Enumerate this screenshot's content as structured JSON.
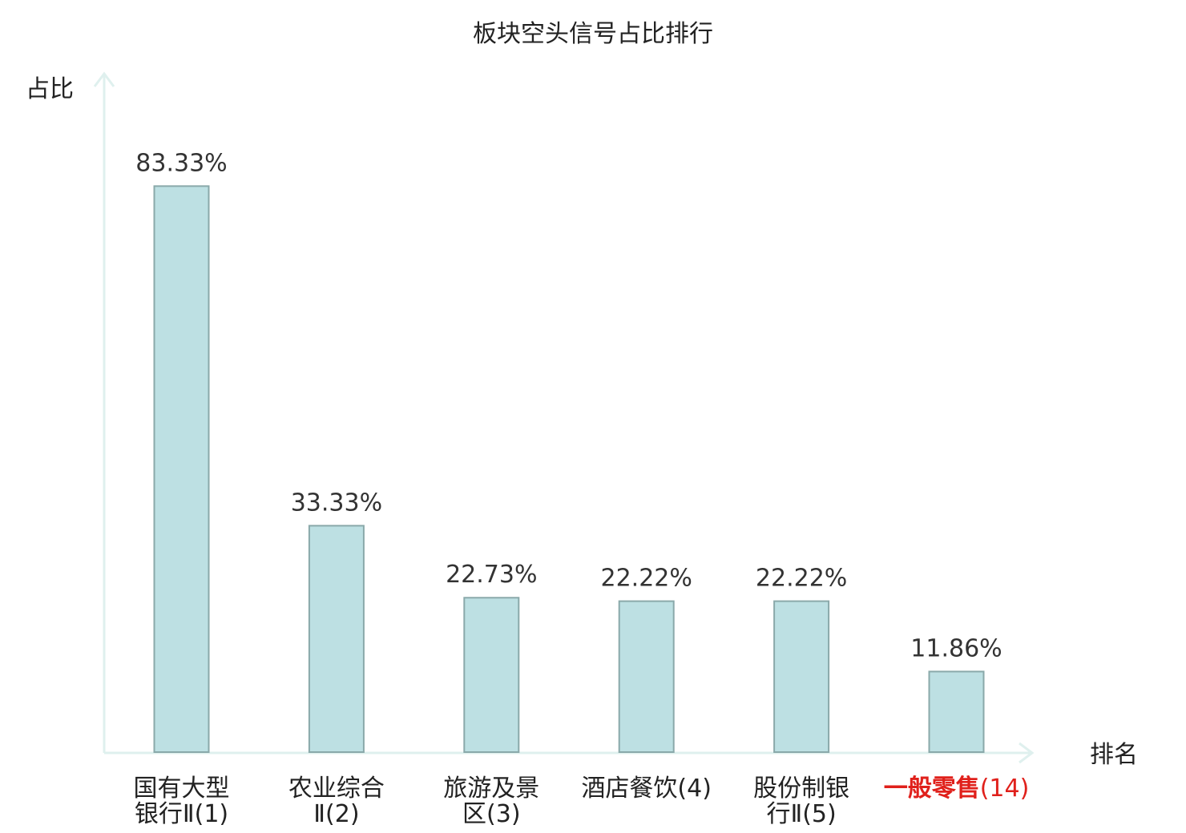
{
  "chart_data": {
    "type": "bar",
    "title": "板块空头信号占比排行",
    "ylabel": "占比",
    "xlabel": "排名",
    "ylim": [
      0,
      100
    ],
    "grid": false,
    "legend": "none",
    "categories": [
      {
        "lines": [
          "国有大型",
          "银行Ⅱ(1)"
        ],
        "highlight": false
      },
      {
        "lines": [
          "农业综合",
          "Ⅱ(2)"
        ],
        "highlight": false
      },
      {
        "lines": [
          "旅游及景",
          "区(3)"
        ],
        "highlight": false
      },
      {
        "lines": [
          "酒店餐饮(4)"
        ],
        "highlight": false
      },
      {
        "lines": [
          "股份制银",
          "行Ⅱ(5)"
        ],
        "highlight": false
      },
      {
        "lines": [
          {
            "main": "一般零售",
            "suffix": "(14)"
          }
        ],
        "highlight": true
      }
    ],
    "values": [
      83.33,
      33.33,
      22.73,
      22.22,
      22.22,
      11.86
    ],
    "value_labels": [
      "83.33%",
      "33.33%",
      "22.73%",
      "22.22%",
      "22.22%",
      "11.86%"
    ],
    "colors": {
      "bar_fill": "#bde0e3",
      "bar_stroke": "#8aa9aa",
      "axis": "#dff0ee",
      "highlight_text": "#e0201b"
    }
  }
}
